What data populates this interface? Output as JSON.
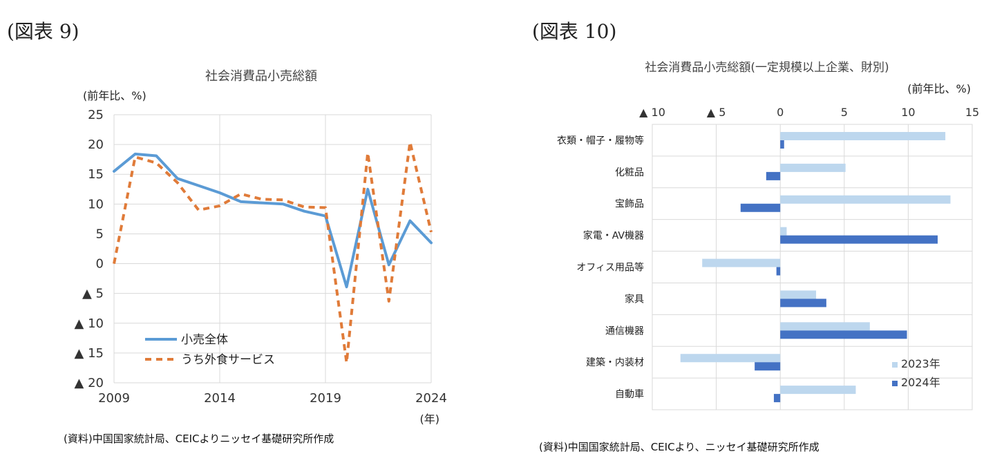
{
  "figure9": {
    "label": "(図表 9)",
    "source": "(資料)中国国家統計局、CEICよりニッセイ基礎研究所作成",
    "chart_data": {
      "type": "line",
      "title": "社会消費品小売総額",
      "ylabel": "(前年比、%)",
      "xlabel": "(年)",
      "x": [
        2009,
        2010,
        2011,
        2012,
        2013,
        2014,
        2015,
        2016,
        2017,
        2018,
        2019,
        2020,
        2021,
        2022,
        2023,
        2024
      ],
      "x_tick_values": [
        2009,
        2014,
        2019,
        2024
      ],
      "x_tick_labels": [
        "2009",
        "2014",
        "2019",
        "2024"
      ],
      "ylim": [
        -20,
        25
      ],
      "y_ticks": [
        25,
        20,
        15,
        10,
        5,
        0,
        -5,
        -10,
        -15,
        -20
      ],
      "y_tick_labels": [
        "25",
        "20",
        "15",
        "10",
        "5",
        "0",
        "▲ 5",
        "▲ 10",
        "▲ 15",
        "▲ 20"
      ],
      "grid": true,
      "legend_position": "bottom-left",
      "series": [
        {
          "name": "小売全体",
          "color": "#5b9bd5",
          "style": "solid",
          "values": [
            15.5,
            18.4,
            18.1,
            14.3,
            13.1,
            11.9,
            10.4,
            10.2,
            10.0,
            8.8,
            8.0,
            -3.9,
            12.5,
            -0.2,
            7.2,
            3.5
          ]
        },
        {
          "name": "うち外食サービス",
          "color": "#e07b39",
          "style": "dashed",
          "values": [
            0.0,
            17.9,
            16.9,
            13.6,
            9.0,
            9.7,
            11.7,
            10.8,
            10.7,
            9.5,
            9.4,
            -16.6,
            18.6,
            -6.3,
            20.4,
            5.3
          ]
        }
      ]
    }
  },
  "figure10": {
    "label": "(図表 10)",
    "source": "(資料)中国国家統計局、CEICより、ニッセイ基礎研究所作成",
    "chart_data": {
      "type": "bar",
      "orientation": "horizontal",
      "title": "社会消費品小売総額(一定規模以上企業、財別)",
      "xlabel": "(前年比、%)",
      "xlim": [
        -10,
        15
      ],
      "x_ticks": [
        -10,
        -5,
        0,
        5,
        10,
        15
      ],
      "x_tick_labels": [
        "▲ 10",
        "▲ 5",
        "0",
        "5",
        "10",
        "15"
      ],
      "grid": true,
      "legend_position": "bottom-right",
      "categories": [
        "衣類・帽子・履物等",
        "化粧品",
        "宝飾品",
        "家電・AV機器",
        "オフィス用品等",
        "家具",
        "通信機器",
        "建築・内装材",
        "自動車"
      ],
      "series": [
        {
          "name": "2023年",
          "color": "#bdd7ee",
          "values": [
            12.9,
            5.1,
            13.3,
            0.5,
            -6.1,
            2.8,
            7.0,
            -7.8,
            5.9
          ]
        },
        {
          "name": "2024年",
          "color": "#4472c4",
          "values": [
            0.3,
            -1.1,
            -3.1,
            12.3,
            -0.3,
            3.6,
            9.9,
            -2.0,
            -0.5
          ]
        }
      ]
    }
  }
}
